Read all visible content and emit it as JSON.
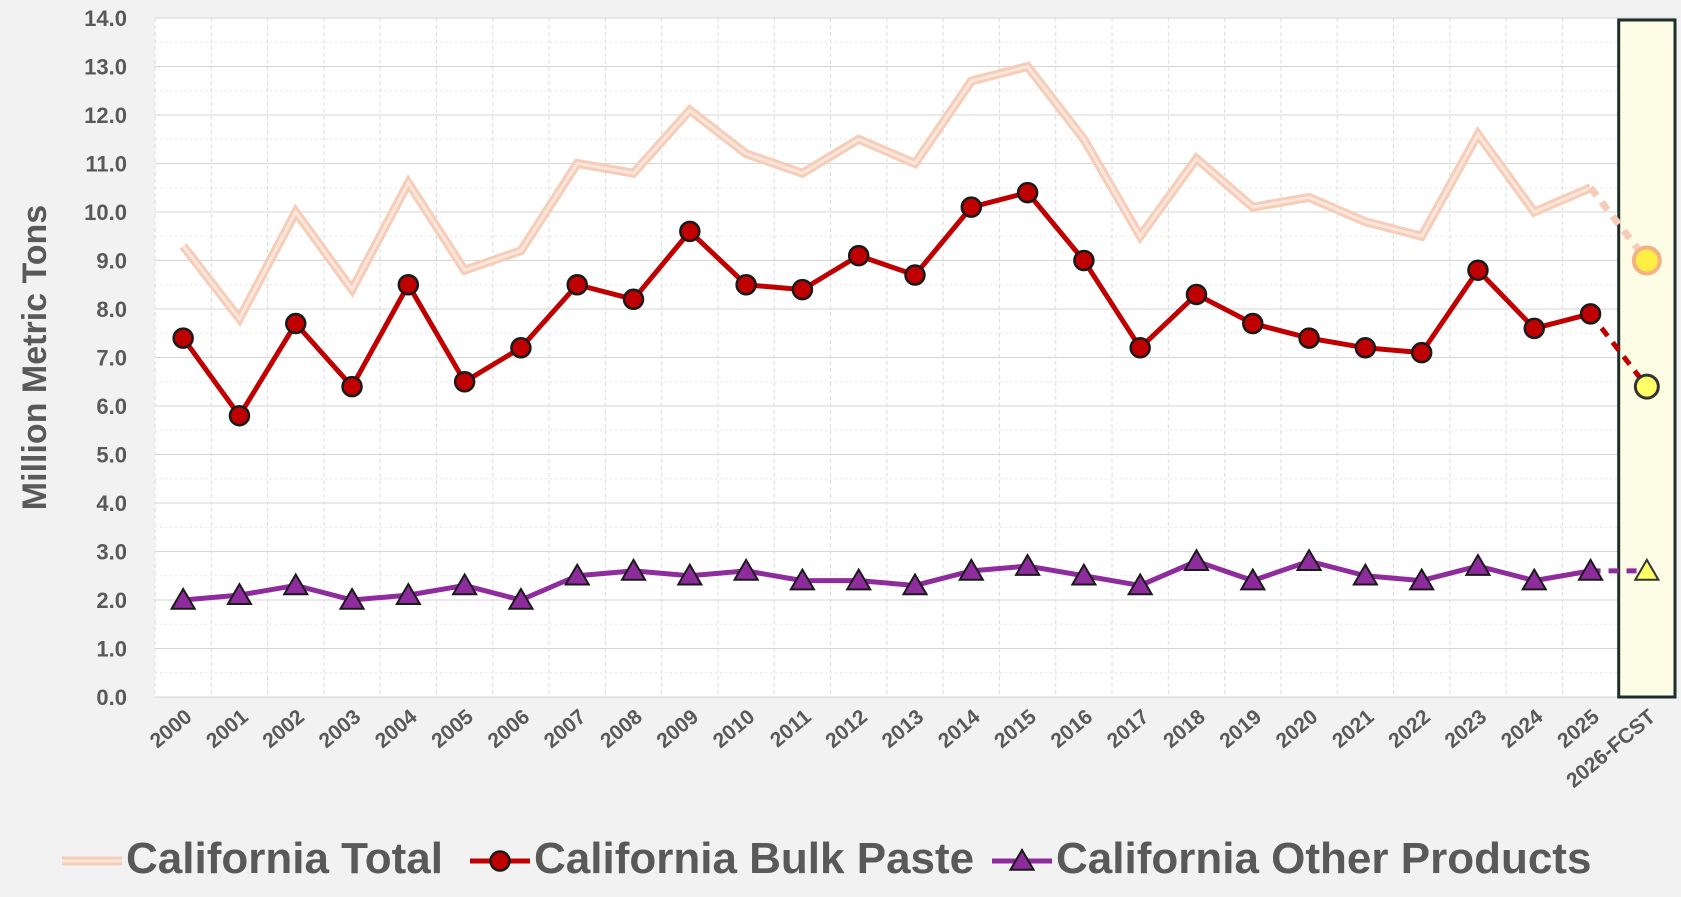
{
  "chart_data": {
    "type": "line",
    "categories": [
      "2000",
      "2001",
      "2002",
      "2003",
      "2004",
      "2005",
      "2006",
      "2007",
      "2008",
      "2009",
      "2010",
      "2011",
      "2012",
      "2013",
      "2014",
      "2015",
      "2016",
      "2017",
      "2018",
      "2019",
      "2020",
      "2021",
      "2022",
      "2023",
      "2024",
      "2025",
      "2026-FCST"
    ],
    "ylabel": "Million Metric Tons",
    "ylim": [
      0,
      14
    ],
    "ytick_labels": [
      "0.0",
      "1.0",
      "2.0",
      "3.0",
      "4.0",
      "5.0",
      "6.0",
      "7.0",
      "8.0",
      "9.0",
      "10.0",
      "11.0",
      "12.0",
      "13.0",
      "14.0"
    ],
    "grid": true,
    "legend_position": "bottom",
    "forecast_category": "2026-FCST",
    "series": [
      {
        "name": "California Total",
        "color": "#f4c2ab",
        "marker": "none",
        "values": [
          9.3,
          7.8,
          10.0,
          8.4,
          10.6,
          8.8,
          9.2,
          11.0,
          10.8,
          12.1,
          11.2,
          10.8,
          11.5,
          11.0,
          12.7,
          13.0,
          11.5,
          9.5,
          11.1,
          10.1,
          10.3,
          9.8,
          9.5,
          11.6,
          10.0,
          10.5,
          9.0
        ]
      },
      {
        "name": "California Bulk Paste",
        "color": "#c00000",
        "marker": "circle",
        "values": [
          7.4,
          5.8,
          7.7,
          6.4,
          8.5,
          6.5,
          7.2,
          8.5,
          8.2,
          9.6,
          8.5,
          8.4,
          9.1,
          8.7,
          10.1,
          10.4,
          9.0,
          7.2,
          8.3,
          7.7,
          7.4,
          7.2,
          7.1,
          8.8,
          7.6,
          7.9,
          6.4
        ]
      },
      {
        "name": "California Other Products",
        "color": "#8e2c9e",
        "marker": "triangle",
        "values": [
          2.0,
          2.1,
          2.3,
          2.0,
          2.1,
          2.3,
          2.0,
          2.5,
          2.6,
          2.5,
          2.6,
          2.4,
          2.4,
          2.3,
          2.6,
          2.7,
          2.5,
          2.3,
          2.8,
          2.4,
          2.8,
          2.5,
          2.4,
          2.7,
          2.4,
          2.6,
          2.6
        ]
      }
    ],
    "forecast_marker_colors": {
      "total_fill": "#ffee44",
      "total_stroke": "#f4b183",
      "paste_fill": "#ffff66",
      "paste_stroke": "#333333",
      "other_fill": "#ffff66",
      "other_stroke": "#333333",
      "highlight_bg": "#fdfde6",
      "highlight_border": "#1f2d2d"
    }
  }
}
